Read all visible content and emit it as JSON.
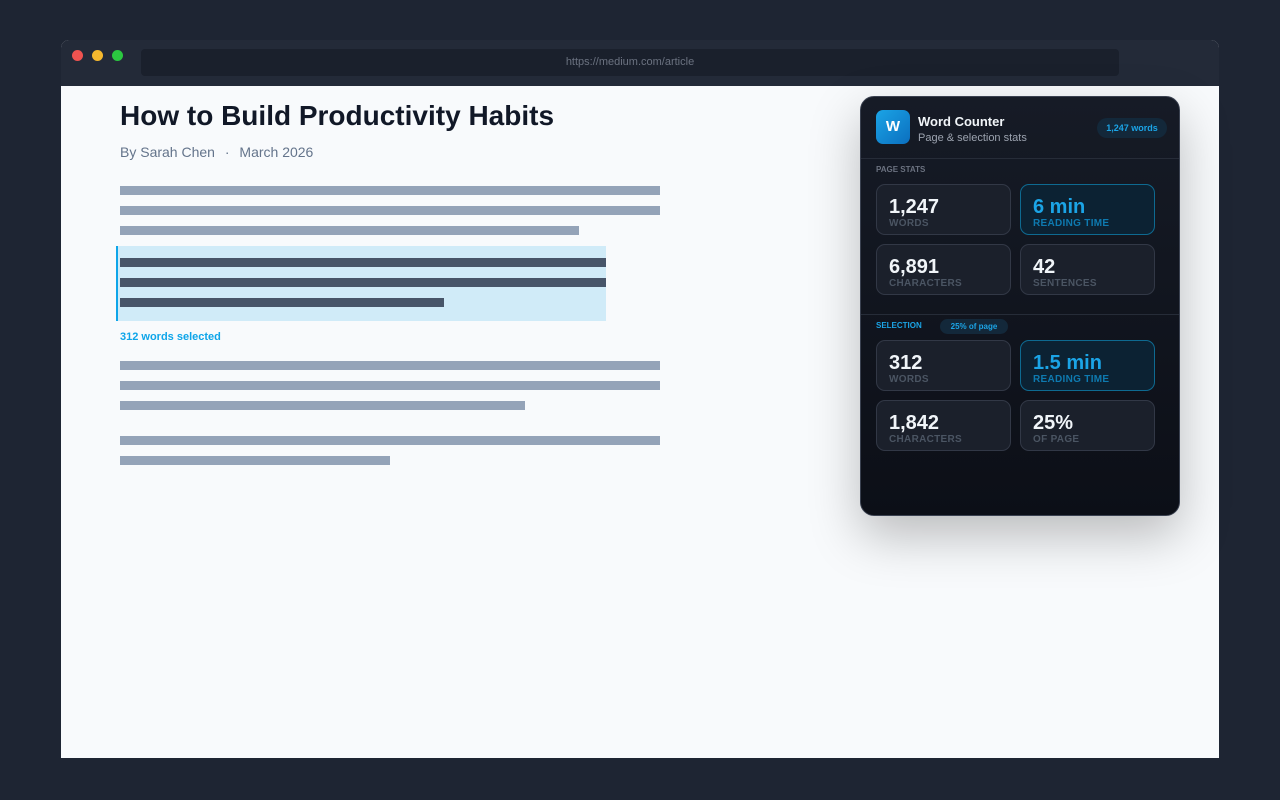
{
  "browser": {
    "url": "https://medium.com/article"
  },
  "article": {
    "title": "How to Build Productivity Habits",
    "author": "By Sarah Chen",
    "separator": "·",
    "date": "March 2026",
    "selection_note": "312 words selected"
  },
  "popup": {
    "icon": "W",
    "title": "Word Counter",
    "subtitle": "Page & selection stats",
    "badge": "1,247 words",
    "page_stats": {
      "label": "PAGE STATS",
      "cards": [
        {
          "value": "1,247",
          "label": "WORDS"
        },
        {
          "value": "6 min",
          "label": "READING TIME"
        },
        {
          "value": "6,891",
          "label": "CHARACTERS"
        },
        {
          "value": "42",
          "label": "SENTENCES"
        }
      ]
    },
    "selection": {
      "label": "SELECTION",
      "badge": "25% of page",
      "cards": [
        {
          "value": "312",
          "label": "WORDS"
        },
        {
          "value": "1.5 min",
          "label": "READING TIME"
        },
        {
          "value": "1,842",
          "label": "CHARACTERS"
        },
        {
          "value": "25%",
          "label": "OF PAGE"
        }
      ]
    }
  }
}
